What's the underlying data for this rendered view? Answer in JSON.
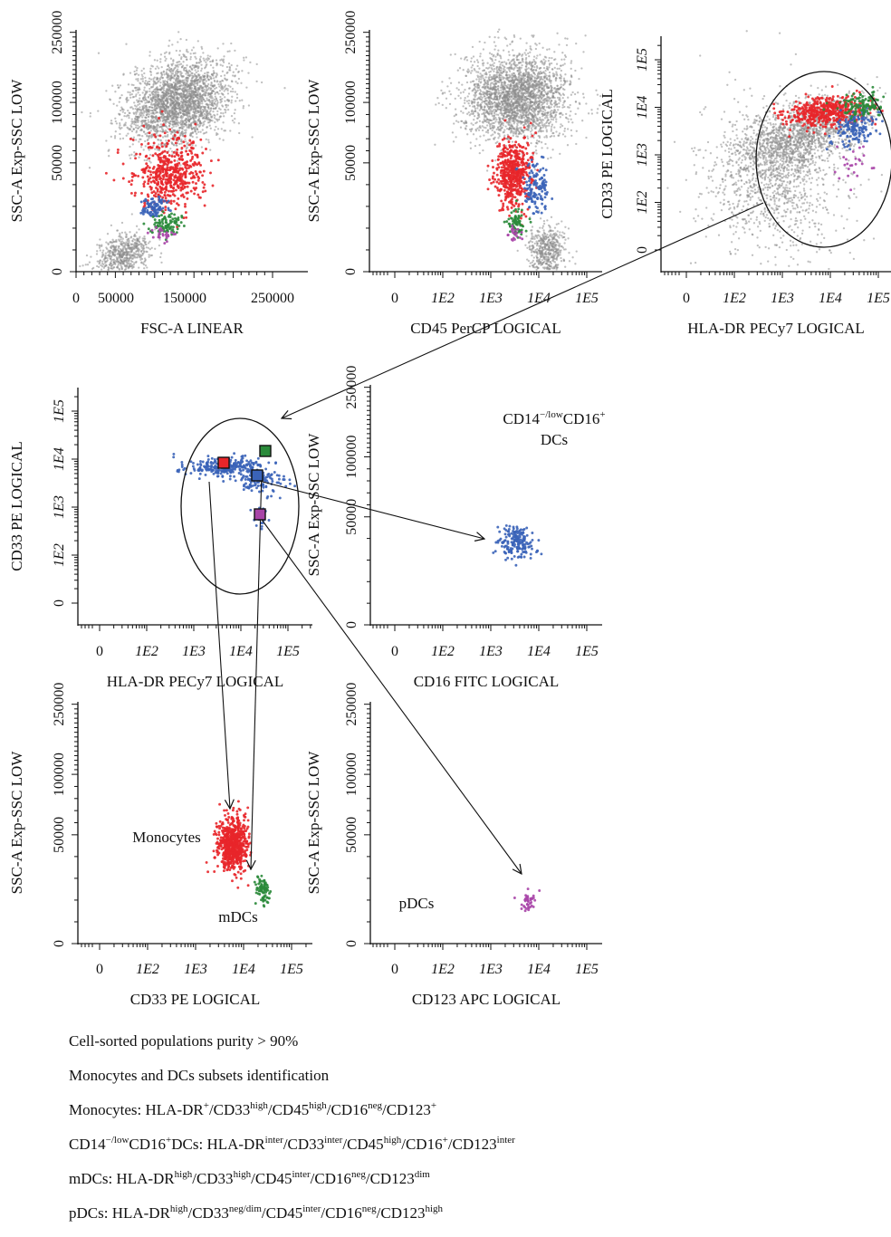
{
  "chart_data": [
    {
      "id": "p1",
      "type": "scatter",
      "xlabel": "FSC-A LINEAR",
      "ylabel": "SSC-A Exp-SSC LOW",
      "x_ticks": [
        "0",
        "50000",
        "150000",
        "250000"
      ],
      "y_ticks": [
        "0",
        "50000",
        "100000",
        "250000"
      ],
      "populations": [
        {
          "color": "#8c8c8c",
          "n": 2600,
          "x_center": 130000,
          "y_center": 100000
        },
        {
          "color": "#8c8c8c",
          "n": 600,
          "x_center": 60000,
          "y_center": 8000
        },
        {
          "color": "#e8262a",
          "n": 500,
          "x_center": 120000,
          "y_center": 45000
        },
        {
          "color": "#3a63b8",
          "n": 90,
          "x_center": 100000,
          "y_center": 30000
        },
        {
          "color": "#2a8a3a",
          "n": 90,
          "x_center": 115000,
          "y_center": 22000
        },
        {
          "color": "#a845a8",
          "n": 25,
          "x_center": 110000,
          "y_center": 17000
        }
      ]
    },
    {
      "id": "p2",
      "type": "scatter",
      "xlabel": "CD45 PerCP LOGICAL",
      "ylabel": "SSC-A Exp-SSC LOW",
      "x_ticks": [
        "0",
        "1E2",
        "1E3",
        "1E4",
        "1E5"
      ],
      "y_ticks": [
        "0",
        "50000",
        "100000",
        "250000"
      ],
      "populations": [
        {
          "color": "#8c8c8c",
          "n": 2600,
          "x_center": 3500,
          "y_center": 110000
        },
        {
          "color": "#8c8c8c",
          "n": 500,
          "x_center": 15000,
          "y_center": 10000
        },
        {
          "color": "#e8262a",
          "n": 500,
          "x_center": 3000,
          "y_center": 45000
        },
        {
          "color": "#3a63b8",
          "n": 130,
          "x_center": 9000,
          "y_center": 38000
        },
        {
          "color": "#2a8a3a",
          "n": 70,
          "x_center": 3500,
          "y_center": 23000
        },
        {
          "color": "#a845a8",
          "n": 20,
          "x_center": 3000,
          "y_center": 18000
        }
      ]
    },
    {
      "id": "p3",
      "type": "scatter",
      "xlabel": "HLA-DR PECy7 LOGICAL",
      "ylabel": "CD33 PE LOGICAL",
      "x_ticks": [
        "0",
        "1E2",
        "1E3",
        "1E4",
        "1E5"
      ],
      "y_ticks": [
        "0",
        "1E2",
        "1E3",
        "1E4",
        "1E5"
      ],
      "populations": [
        {
          "color": "#8c8c8c",
          "n": 1500,
          "x_center": 2500,
          "y_center": 2500
        },
        {
          "color": "#8c8c8c",
          "n": 1000,
          "x_center": 800,
          "y_center": 300
        },
        {
          "color": "#e8262a",
          "n": 450,
          "x_center": 8000,
          "y_center": 8000
        },
        {
          "color": "#3a63b8",
          "n": 150,
          "x_center": 35000,
          "y_center": 4000
        },
        {
          "color": "#2a8a3a",
          "n": 120,
          "x_center": 45000,
          "y_center": 11000
        },
        {
          "color": "#a845a8",
          "n": 25,
          "x_center": 30000,
          "y_center": 700
        }
      ]
    },
    {
      "id": "p4",
      "type": "scatter",
      "xlabel": "HLA-DR PECy7 LOGICAL",
      "ylabel": "CD33 PE LOGICAL",
      "x_ticks": [
        "0",
        "1E2",
        "1E3",
        "1E4",
        "1E5"
      ],
      "y_ticks": [
        "0",
        "1E2",
        "1E3",
        "1E4",
        "1E5"
      ],
      "populations": [
        {
          "color": "#3a63b8",
          "n": 260,
          "x_center": 4500,
          "y_center": 7000
        },
        {
          "color": "#3a63b8",
          "n": 110,
          "x_center": 25000,
          "y_center": 3500
        },
        {
          "color": "#3a63b8",
          "n": 25,
          "x_center": 25000,
          "y_center": 600
        }
      ]
    },
    {
      "id": "p5",
      "type": "scatter",
      "xlabel": "CD16 FITC LOGICAL",
      "ylabel": "SSC-A Exp-SSC LOW",
      "x_ticks": [
        "0",
        "1E2",
        "1E3",
        "1E4",
        "1E5"
      ],
      "y_ticks": [
        "0",
        "50000",
        "100000",
        "250000"
      ],
      "annotation": {
        "main": "CD14",
        "sup1": "−/low",
        "mid": "CD16",
        "sup2": "+",
        "line2": "DCs"
      },
      "populations": [
        {
          "color": "#3a63b8",
          "n": 180,
          "x_center": 3500,
          "y_center": 38000
        }
      ]
    },
    {
      "id": "p6",
      "type": "scatter",
      "xlabel": "CD33 PE LOGICAL",
      "ylabel": "SSC-A Exp-SSC LOW",
      "x_ticks": [
        "0",
        "1E2",
        "1E3",
        "1E4",
        "1E5"
      ],
      "y_ticks": [
        "0",
        "50000",
        "100000",
        "250000"
      ],
      "annotations": [
        "Monocytes",
        "mDCs"
      ],
      "populations": [
        {
          "color": "#e8262a",
          "n": 700,
          "x_center": 6000,
          "y_center": 46000
        },
        {
          "color": "#2a8a3a",
          "n": 80,
          "x_center": 25000,
          "y_center": 24000
        }
      ]
    },
    {
      "id": "p7",
      "type": "scatter",
      "xlabel": "CD123 APC LOGICAL",
      "ylabel": "SSC-A Exp-SSC LOW",
      "x_ticks": [
        "0",
        "1E2",
        "1E3",
        "1E4",
        "1E5"
      ],
      "y_ticks": [
        "0",
        "50000",
        "100000",
        "250000"
      ],
      "annotations": [
        "pDCs"
      ],
      "populations": [
        {
          "color": "#a845a8",
          "n": 40,
          "x_center": 6000,
          "y_center": 20000
        }
      ]
    }
  ],
  "gate_markers": [
    {
      "color": "#e8262a"
    },
    {
      "color": "#2a8a3a"
    },
    {
      "color": "#3a63b8"
    },
    {
      "color": "#a845a8"
    }
  ],
  "notes": [
    [
      {
        "t": "Cell-sorted populations purity > 90%"
      }
    ],
    [
      {
        "t": "Monocytes and DCs subsets identification"
      }
    ],
    [
      {
        "t": "Monocytes: HLA-DR"
      },
      {
        "s": "+"
      },
      {
        "t": "/CD33"
      },
      {
        "s": "high"
      },
      {
        "t": "/CD45"
      },
      {
        "s": "high"
      },
      {
        "t": "/CD16"
      },
      {
        "s": "neg"
      },
      {
        "t": "/CD123"
      },
      {
        "s": "+"
      }
    ],
    [
      {
        "t": "CD14"
      },
      {
        "s": "−/low"
      },
      {
        "t": "CD16"
      },
      {
        "s": "+"
      },
      {
        "t": "DCs: HLA-DR"
      },
      {
        "s": "inter"
      },
      {
        "t": "/CD33"
      },
      {
        "s": "inter"
      },
      {
        "t": "/CD45"
      },
      {
        "s": "high"
      },
      {
        "t": "/CD16"
      },
      {
        "s": "+"
      },
      {
        "t": "/CD123"
      },
      {
        "s": "inter"
      }
    ],
    [
      {
        "t": "mDCs: HLA-DR"
      },
      {
        "s": "high"
      },
      {
        "t": "/CD33"
      },
      {
        "s": "high"
      },
      {
        "t": "/CD45"
      },
      {
        "s": "inter"
      },
      {
        "t": "/CD16"
      },
      {
        "s": "neg"
      },
      {
        "t": "/CD123"
      },
      {
        "s": "dim"
      }
    ],
    [
      {
        "t": "pDCs: HLA-DR"
      },
      {
        "s": "high"
      },
      {
        "t": "/CD33"
      },
      {
        "s": "neg/dim"
      },
      {
        "t": "/CD45"
      },
      {
        "s": "inter"
      },
      {
        "t": "/CD16"
      },
      {
        "s": "neg"
      },
      {
        "t": "/CD123"
      },
      {
        "s": "high"
      }
    ]
  ]
}
